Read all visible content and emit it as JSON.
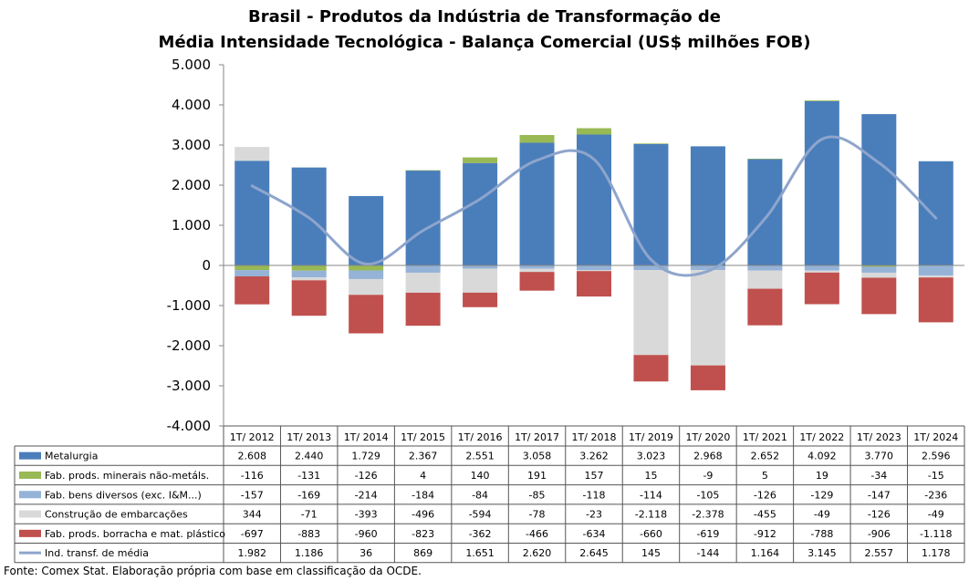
{
  "chart_data": {
    "type": "bar",
    "title": "Brasil - Produtos da Indústria de Transformação de",
    "subtitle": "Média Intensidade Tecnológica - Balança Comercial (US$ milhões FOB)",
    "categories": [
      "1T/ 2012",
      "1T/ 2013",
      "1T/ 2014",
      "1T/ 2015",
      "1T/ 2016",
      "1T/ 2017",
      "1T/ 2018",
      "1T/ 2019",
      "1T/ 2020",
      "1T/ 2021",
      "1T/ 2022",
      "1T/ 2023",
      "1T/ 2024"
    ],
    "ylim": [
      -4000,
      5000
    ],
    "yticks": [
      5000,
      4000,
      3000,
      2000,
      1000,
      0,
      -1000,
      -2000,
      -3000,
      -4000
    ],
    "ytick_labels": [
      "5.000",
      "4.000",
      "3.000",
      "2.000",
      "1.000",
      "0",
      "-1.000",
      "-2.000",
      "-3.000",
      "-4.000"
    ],
    "grid": false,
    "legend": "table-below",
    "series": [
      {
        "name": "Metalurgia",
        "kind": "bar",
        "color": "#4a7ebb",
        "values": [
          2608,
          2440,
          1729,
          2367,
          2551,
          3058,
          3262,
          3023,
          2968,
          2652,
          4092,
          3770,
          2596
        ],
        "labels": [
          "2.608",
          "2.440",
          "1.729",
          "2.367",
          "2.551",
          "3.058",
          "3.262",
          "3.023",
          "2.968",
          "2.652",
          "4.092",
          "3.770",
          "2.596"
        ]
      },
      {
        "name": "Fab. prods. minerais não-metáls.",
        "kind": "bar",
        "color": "#98b954",
        "values": [
          -116,
          -131,
          -126,
          4,
          140,
          191,
          157,
          15,
          -9,
          5,
          19,
          -34,
          -15
        ],
        "labels": [
          "-116",
          "-131",
          "-126",
          "4",
          "140",
          "191",
          "157",
          "15",
          "-9",
          "5",
          "19",
          "-34",
          "-15"
        ]
      },
      {
        "name": "Fab. bens diversos (exc. I&M...)",
        "kind": "bar",
        "color": "#95b3d7",
        "values": [
          -157,
          -169,
          -214,
          -184,
          -84,
          -85,
          -118,
          -114,
          -105,
          -126,
          -129,
          -147,
          -236
        ],
        "labels": [
          "-157",
          "-169",
          "-214",
          "-184",
          "-84",
          "-85",
          "-118",
          "-114",
          "-105",
          "-126",
          "-129",
          "-147",
          "-236"
        ]
      },
      {
        "name": "Construção de embarcações",
        "kind": "bar",
        "color": "#d9d9d9",
        "values": [
          344,
          -71,
          -393,
          -496,
          -594,
          -78,
          -23,
          -2118,
          -2378,
          -455,
          -49,
          -126,
          -49
        ],
        "labels": [
          "344",
          "-71",
          "-393",
          "-496",
          "-594",
          "-78",
          "-23",
          "-2.118",
          "-2.378",
          "-455",
          "-49",
          "-126",
          "-49"
        ]
      },
      {
        "name": "Fab. prods. borracha e mat. plástico",
        "kind": "bar",
        "color": "#c0504d",
        "values": [
          -697,
          -883,
          -960,
          -823,
          -362,
          -466,
          -634,
          -660,
          -619,
          -912,
          -788,
          -906,
          -1118
        ],
        "labels": [
          "-697",
          "-883",
          "-960",
          "-823",
          "-362",
          "-466",
          "-634",
          "-660",
          "-619",
          "-912",
          "-788",
          "-906",
          "-1.118"
        ]
      },
      {
        "name": "Ind. transf. de média",
        "kind": "line",
        "color": "#8ea5cc",
        "values": [
          1982,
          1186,
          36,
          869,
          1651,
          2620,
          2645,
          145,
          -144,
          1164,
          3145,
          2557,
          1178
        ],
        "labels": [
          "1.982",
          "1.186",
          "36",
          "869",
          "1.651",
          "2.620",
          "2.645",
          "145",
          "-144",
          "1.164",
          "3.145",
          "2.557",
          "1.178"
        ]
      }
    ],
    "source": "Fonte:  Comex Stat. Elaboração própria com base em classificação da OCDE."
  }
}
